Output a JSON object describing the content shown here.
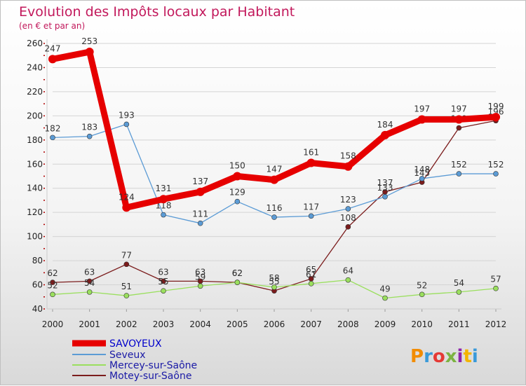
{
  "chart_data": {
    "type": "line",
    "title": "Evolution des Impôts locaux par Habitant",
    "subtitle": "(en € et par an)",
    "x": [
      "2000",
      "2001",
      "2002",
      "2003",
      "2004",
      "2005",
      "2006",
      "2007",
      "2008",
      "2009",
      "2010",
      "2011",
      "2012"
    ],
    "ylim": [
      40,
      260
    ],
    "yticks": [
      40,
      60,
      80,
      100,
      120,
      140,
      160,
      180,
      200,
      220,
      240,
      260
    ],
    "grid": "horizontal",
    "legend_position": "bottom-left",
    "series": [
      {
        "name": "SAVOYEUX",
        "color": "#e60000",
        "values": [
          247,
          253,
          124,
          131,
          137,
          150,
          147,
          161,
          158,
          184,
          197,
          197,
          199
        ]
      },
      {
        "name": "Seveux",
        "color": "#5b9bd5",
        "values": [
          182,
          183,
          193,
          118,
          111,
          129,
          116,
          117,
          123,
          133,
          148,
          152,
          152
        ]
      },
      {
        "name": "Mercey-sur-Saône",
        "color": "#9adf5e",
        "values": [
          52,
          54,
          51,
          55,
          59,
          62,
          58,
          61,
          64,
          49,
          52,
          54,
          57
        ]
      },
      {
        "name": "Motey-sur-Saône",
        "color": "#7b1c1c",
        "values": [
          62,
          63,
          77,
          63,
          63,
          62,
          55,
          65,
          108,
          137,
          145,
          190,
          196
        ]
      }
    ]
  },
  "logo": "Proxiti"
}
